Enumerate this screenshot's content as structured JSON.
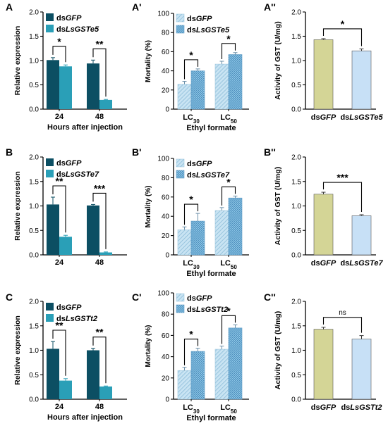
{
  "colors": {
    "expr_gfp": "#0c4f63",
    "expr_target": "#2a9fb7",
    "mort_gfp": "#c9e4f3",
    "mort_target": "#8fc8e8",
    "gst_gfp": "#d4d596",
    "gst_target": "#c7e0f6",
    "axis": "#000000"
  },
  "chart_data": [
    {
      "type": "bar",
      "panel_label": "A",
      "kind": "expression",
      "categories": [
        "24",
        "48"
      ],
      "series": [
        {
          "name_prefix": "ds",
          "name_gene": "GFP",
          "values": [
            1.01,
            0.94
          ],
          "errors": [
            0.05,
            0.07
          ]
        },
        {
          "name_prefix": "ds",
          "name_gene": "LsGSTe5",
          "values": [
            0.88,
            0.19
          ],
          "errors": [
            0.03,
            0.01
          ]
        }
      ],
      "xlabel": "Hours after injection",
      "ylabel": "Relative expression",
      "ylim": [
        0,
        2.0
      ],
      "yticks": [
        "0.0",
        "0.5",
        "1.0",
        "1.5",
        "2.0"
      ],
      "significance": [
        "*",
        "**"
      ]
    },
    {
      "type": "bar",
      "panel_label": "A'",
      "kind": "mortality",
      "categories_base": [
        "LC",
        "LC"
      ],
      "categories_sub": [
        "30",
        "50"
      ],
      "series": [
        {
          "name_prefix": "ds",
          "name_gene": "GFP",
          "values": [
            26,
            47
          ],
          "errors": [
            3,
            3
          ]
        },
        {
          "name_prefix": "ds",
          "name_gene": "LsGSTe5",
          "values": [
            40,
            57
          ],
          "errors": [
            2,
            2
          ]
        }
      ],
      "xlabel": "Ethyl formate",
      "ylabel": "Mortality (%)",
      "ylim": [
        0,
        100
      ],
      "yticks": [
        "0",
        "20",
        "40",
        "60",
        "80",
        "100"
      ],
      "significance": [
        "*",
        "*"
      ]
    },
    {
      "type": "bar",
      "panel_label": "A''",
      "kind": "activity",
      "categories": [
        {
          "prefix": "ds",
          "gene": "GFP"
        },
        {
          "prefix": "ds",
          "gene": "LsGSTe5"
        }
      ],
      "values": [
        1.43,
        1.2
      ],
      "errors": [
        0.02,
        0.04
      ],
      "ylabel": "Activity of GST (U/mg)",
      "ylim": [
        0,
        2.0
      ],
      "yticks": [
        "0.0",
        "0.5",
        "1.0",
        "1.5",
        "2.0"
      ],
      "significance": "*"
    },
    {
      "type": "bar",
      "panel_label": "B",
      "kind": "expression",
      "categories": [
        "24",
        "48"
      ],
      "series": [
        {
          "name_prefix": "ds",
          "name_gene": "GFP",
          "values": [
            1.03,
            1.01
          ],
          "errors": [
            0.15,
            0.02
          ]
        },
        {
          "name_prefix": "ds",
          "name_gene": "LsGSTe7",
          "values": [
            0.37,
            0.05
          ],
          "errors": [
            0.03,
            0.01
          ]
        }
      ],
      "xlabel": "",
      "ylabel": "Relative expression",
      "ylim": [
        0,
        2.0
      ],
      "yticks": [
        "0.0",
        "0.5",
        "1.0",
        "1.5",
        "2.0"
      ],
      "significance": [
        "**",
        "***"
      ]
    },
    {
      "type": "bar",
      "panel_label": "B'",
      "kind": "mortality",
      "categories_base": [
        "LC",
        "LC"
      ],
      "categories_sub": [
        "30",
        "50"
      ],
      "series": [
        {
          "name_prefix": "ds",
          "name_gene": "GFP",
          "values": [
            26,
            46
          ],
          "errors": [
            3,
            3
          ]
        },
        {
          "name_prefix": "ds",
          "name_gene": "LsGSTe7",
          "values": [
            35,
            59
          ],
          "errors": [
            8,
            2
          ]
        }
      ],
      "xlabel": "Ethyl formate",
      "ylabel": "Mortality (%)",
      "ylim": [
        0,
        100
      ],
      "yticks": [
        "0",
        "20",
        "40",
        "60",
        "80",
        "100"
      ],
      "significance": [
        "*",
        "*"
      ]
    },
    {
      "type": "bar",
      "panel_label": "B''",
      "kind": "activity",
      "categories": [
        {
          "prefix": "ds",
          "gene": "GFP"
        },
        {
          "prefix": "ds",
          "gene": "LsGSTe7"
        }
      ],
      "values": [
        1.24,
        0.8
      ],
      "errors": [
        0.04,
        0.02
      ],
      "ylabel": "Activity of GST (U/mg)",
      "ylim": [
        0,
        2.0
      ],
      "yticks": [
        "0.0",
        "0.5",
        "1.0",
        "1.5",
        "2.0"
      ],
      "significance": "***"
    },
    {
      "type": "bar",
      "panel_label": "C",
      "kind": "expression",
      "categories": [
        "24",
        "48"
      ],
      "series": [
        {
          "name_prefix": "ds",
          "name_gene": "GFP",
          "values": [
            1.03,
            1.0
          ],
          "errors": [
            0.15,
            0.04
          ]
        },
        {
          "name_prefix": "ds",
          "name_gene": "LsGSTt2",
          "values": [
            0.38,
            0.26
          ],
          "errors": [
            0.04,
            0.01
          ]
        }
      ],
      "xlabel": "Hours after injection",
      "ylabel": "Relative expression",
      "ylim": [
        0,
        2.0
      ],
      "yticks": [
        "0.0",
        "0.5",
        "1.0",
        "1.5",
        "2.0"
      ],
      "significance": [
        "**",
        "**"
      ]
    },
    {
      "type": "bar",
      "panel_label": "C'",
      "kind": "mortality",
      "categories_base": [
        "LC",
        "LC"
      ],
      "categories_sub": [
        "30",
        "50"
      ],
      "series": [
        {
          "name_prefix": "ds",
          "name_gene": "GFP",
          "values": [
            27,
            47
          ],
          "errors": [
            3,
            3
          ]
        },
        {
          "name_prefix": "ds",
          "name_gene": "LsGSTt2",
          "values": [
            45,
            67
          ],
          "errors": [
            3,
            3
          ]
        }
      ],
      "xlabel": "Ethyl formate",
      "ylabel": "Mortality (%)",
      "ylim": [
        0,
        100
      ],
      "yticks": [
        "0",
        "20",
        "40",
        "60",
        "80",
        "100"
      ],
      "significance": [
        "*",
        "*"
      ]
    },
    {
      "type": "bar",
      "panel_label": "C''",
      "kind": "activity",
      "categories": [
        {
          "prefix": "ds",
          "gene": "GFP"
        },
        {
          "prefix": "ds",
          "gene": "LsGSTt2"
        }
      ],
      "values": [
        1.43,
        1.23
      ],
      "errors": [
        0.04,
        0.07
      ],
      "ylabel": "Activity of GST (U/mg)",
      "ylim": [
        0,
        2.0
      ],
      "yticks": [
        "0.0",
        "0.5",
        "1.0",
        "1.5",
        "2.0"
      ],
      "significance": "ns"
    }
  ]
}
